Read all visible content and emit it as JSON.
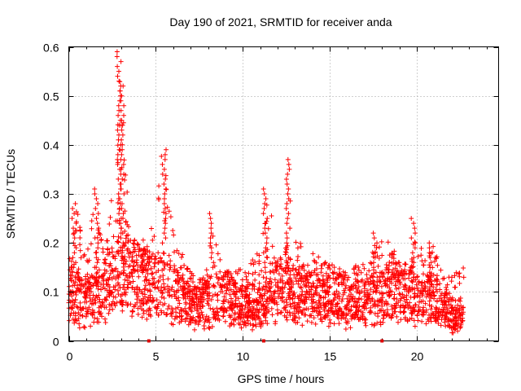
{
  "chart_data": {
    "type": "scatter",
    "title": "Day 190 of 2021, SRMTID for receiver anda",
    "xlabel": "GPS time / hours",
    "ylabel": "SRMTID / TECUs",
    "xlim": [
      0,
      24.7
    ],
    "ylim": [
      0,
      0.6
    ],
    "x_ticks": [
      0,
      5,
      10,
      15,
      20
    ],
    "x_tick_labels": [
      "0",
      "5",
      "10",
      "15",
      "20"
    ],
    "y_ticks": [
      0,
      0.1,
      0.2,
      0.3,
      0.4,
      0.5,
      0.6
    ],
    "y_tick_labels": [
      "0",
      "0.1",
      "0.2",
      "0.3",
      "0.4",
      "0.5",
      "0.6"
    ],
    "grid": true,
    "marker": "plus",
    "color": "#ff0000",
    "data_gap_markers_x": [
      4.6,
      11.2,
      18.0
    ],
    "trend": {
      "description": "approximate upper envelope of SRMTID scatter vs hour",
      "x": [
        0,
        0.5,
        1,
        1.5,
        2,
        2.5,
        2.8,
        3.0,
        3.2,
        3.5,
        4,
        4.5,
        5,
        5.3,
        5.6,
        6,
        6.5,
        7,
        7.5,
        8,
        8.3,
        8.6,
        9,
        10,
        11,
        11.5,
        12,
        12.5,
        12.7,
        13,
        14,
        15,
        16,
        17,
        18,
        19,
        19.5,
        20,
        20.5,
        21,
        21.5,
        22,
        22.5
      ],
      "y": [
        0.18,
        0.28,
        0.16,
        0.3,
        0.18,
        0.3,
        0.46,
        0.59,
        0.4,
        0.22,
        0.2,
        0.22,
        0.24,
        0.38,
        0.39,
        0.22,
        0.18,
        0.14,
        0.12,
        0.15,
        0.26,
        0.18,
        0.14,
        0.15,
        0.19,
        0.31,
        0.15,
        0.2,
        0.37,
        0.22,
        0.18,
        0.16,
        0.14,
        0.17,
        0.22,
        0.17,
        0.15,
        0.25,
        0.16,
        0.2,
        0.14,
        0.13,
        0.16
      ]
    },
    "baseline": {
      "description": "approximate typical (median) SRMTID level vs hour",
      "x": [
        0,
        1,
        2,
        3,
        4,
        5,
        6,
        7,
        8,
        9,
        10,
        11,
        12,
        13,
        14,
        15,
        16,
        17,
        18,
        19,
        20,
        21,
        22,
        22.7
      ],
      "y": [
        0.1,
        0.08,
        0.1,
        0.14,
        0.12,
        0.12,
        0.1,
        0.07,
        0.08,
        0.09,
        0.07,
        0.07,
        0.11,
        0.1,
        0.09,
        0.09,
        0.08,
        0.08,
        0.09,
        0.1,
        0.09,
        0.08,
        0.05,
        0.05
      ]
    },
    "x_end": 22.7
  }
}
